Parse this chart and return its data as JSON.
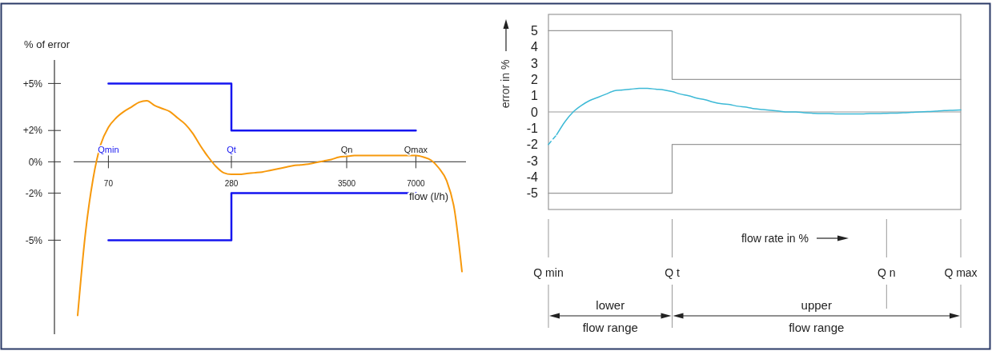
{
  "chart_data": [
    {
      "type": "line",
      "ylabel": "% of error",
      "xlabel": "flow (l/h)",
      "categories": [
        null,
        null,
        null,
        null,
        "70",
        null,
        null,
        null,
        null,
        null,
        null,
        null,
        null,
        null,
        null,
        null,
        null,
        null,
        null,
        null,
        "280",
        null,
        null,
        null,
        null,
        null,
        null,
        null,
        null,
        null,
        null,
        null,
        null,
        null,
        null,
        "3500",
        null,
        null,
        null,
        null,
        null,
        null,
        null,
        null,
        "7000",
        null,
        null,
        null,
        null,
        null,
        null
      ],
      "series": [
        {
          "color": "#f7990c",
          "values": [
            -9.8,
            -4.6,
            -1.1,
            1.1,
            2.2,
            2.8,
            3.2,
            3.5,
            3.8,
            3.9,
            3.6,
            3.4,
            3.2,
            2.8,
            2.4,
            1.8,
            1.0,
            0.3,
            -0.3,
            -0.7,
            -0.8,
            -0.8,
            -0.75,
            -0.7,
            -0.65,
            -0.55,
            -0.45,
            -0.35,
            -0.25,
            -0.2,
            -0.15,
            -0.05,
            0.05,
            0.15,
            0.3,
            0.35,
            0.4,
            0.4,
            0.4,
            0.4,
            0.4,
            0.4,
            0.4,
            0.4,
            0.4,
            0.3,
            0.1,
            -0.4,
            -1.2,
            -3.0,
            -7.0
          ]
        },
        {
          "type": "step",
          "color": "#1515f0",
          "values": [
            null,
            null,
            null,
            null,
            5,
            5,
            5,
            5,
            5,
            5,
            5,
            5,
            5,
            5,
            5,
            5,
            5,
            5,
            5,
            5,
            2,
            2,
            2,
            2,
            2,
            2,
            2,
            2,
            2,
            2,
            2,
            2,
            2,
            2,
            2,
            2,
            2,
            2,
            2,
            2,
            2,
            2,
            2,
            2,
            2,
            null,
            null,
            null,
            null,
            null,
            null
          ]
        },
        {
          "type": "step",
          "color": "#1515f0",
          "values": [
            null,
            null,
            null,
            null,
            -5,
            -5,
            -5,
            -5,
            -5,
            -5,
            -5,
            -5,
            -5,
            -5,
            -5,
            -5,
            -5,
            -5,
            -5,
            -5,
            -2,
            -2,
            -2,
            -2,
            -2,
            -2,
            -2,
            -2,
            -2,
            -2,
            -2,
            -2,
            -2,
            -2,
            -2,
            -2,
            -2,
            -2,
            -2,
            -2,
            -2,
            -2,
            -2,
            -2,
            -2,
            null,
            null,
            null,
            null,
            null,
            null
          ]
        }
      ],
      "ylim": [
        -11,
        6.5
      ],
      "yticks": [
        {
          "value": 5,
          "label": "+5%"
        },
        {
          "value": 2,
          "label": "+2%"
        },
        {
          "value": 0,
          "label": "0%"
        },
        {
          "value": -2,
          "label": "-2%"
        },
        {
          "value": -5,
          "label": "-5%"
        }
      ],
      "annotations": [
        "Qmin",
        "Qt",
        "Qn",
        "Qmax"
      ]
    },
    {
      "type": "line",
      "ylabel": "error in %",
      "xlabel": "flow rate in %",
      "categories": [
        "Q min",
        null,
        null,
        null,
        null,
        null,
        null,
        null,
        null,
        null,
        null,
        null,
        null,
        null,
        null,
        "Q t",
        null,
        null,
        null,
        null,
        null,
        null,
        null,
        null,
        null,
        null,
        null,
        null,
        null,
        null,
        null,
        null,
        null,
        null,
        null,
        null,
        null,
        null,
        null,
        null,
        null,
        "Q n",
        null,
        null,
        null,
        null,
        null,
        null,
        null,
        null,
        "Q max"
      ],
      "series": [
        {
          "color": "#3cb9d6",
          "values": [
            null,
            -1.4,
            -0.6,
            0.0,
            0.4,
            0.7,
            0.9,
            1.1,
            1.3,
            1.35,
            1.4,
            1.45,
            1.45,
            1.4,
            1.35,
            1.25,
            1.1,
            1.0,
            0.85,
            0.75,
            0.6,
            0.5,
            0.45,
            0.35,
            0.3,
            0.2,
            0.15,
            0.1,
            0.05,
            0.0,
            0.0,
            -0.05,
            -0.08,
            -0.1,
            -0.1,
            -0.12,
            -0.12,
            -0.12,
            -0.12,
            -0.1,
            -0.1,
            -0.08,
            -0.07,
            -0.05,
            -0.03,
            0.0,
            0.02,
            0.05,
            0.08,
            0.1,
            0.12
          ]
        },
        {
          "color": "#3cb9d6",
          "line_style": "dashed",
          "values": [
            -2.0,
            -1.4,
            null,
            null,
            null,
            null,
            null,
            null,
            null,
            null,
            null,
            null,
            null,
            null,
            null,
            null,
            null,
            null,
            null,
            null,
            null,
            null,
            null,
            null,
            null,
            null,
            null,
            null,
            null,
            null,
            null,
            null,
            null,
            null,
            null,
            null,
            null,
            null,
            null,
            null,
            null,
            null,
            null,
            null,
            null,
            null,
            null,
            null,
            null,
            null,
            null
          ]
        },
        {
          "type": "step",
          "color": "#999999",
          "values": [
            5,
            5,
            5,
            5,
            5,
            5,
            5,
            5,
            5,
            5,
            5,
            5,
            5,
            5,
            5,
            2,
            2,
            2,
            2,
            2,
            2,
            2,
            2,
            2,
            2,
            2,
            2,
            2,
            2,
            2,
            2,
            2,
            2,
            2,
            2,
            2,
            2,
            2,
            2,
            2,
            2,
            2,
            2,
            2,
            2,
            2,
            2,
            2,
            2,
            2,
            2
          ]
        },
        {
          "type": "step",
          "color": "#999999",
          "values": [
            -5,
            -5,
            -5,
            -5,
            -5,
            -5,
            -5,
            -5,
            -5,
            -5,
            -5,
            -5,
            -5,
            -5,
            -5,
            -2,
            -2,
            -2,
            -2,
            -2,
            -2,
            -2,
            -2,
            -2,
            -2,
            -2,
            -2,
            -2,
            -2,
            -2,
            -2,
            -2,
            -2,
            -2,
            -2,
            -2,
            -2,
            -2,
            -2,
            -2,
            -2,
            -2,
            -2,
            -2,
            -2,
            -2,
            -2,
            -2,
            -2,
            -2,
            -2
          ]
        }
      ],
      "ref_lines": [
        {
          "axis": "y",
          "value": 0,
          "color": "#999999"
        }
      ],
      "ylim": [
        -6,
        6
      ],
      "yticks": [
        -5,
        -4,
        -3,
        -2,
        -1,
        0,
        1,
        2,
        3,
        4,
        5
      ],
      "annotations": [
        "lower",
        "flow range",
        "upper",
        "flow range"
      ]
    }
  ]
}
